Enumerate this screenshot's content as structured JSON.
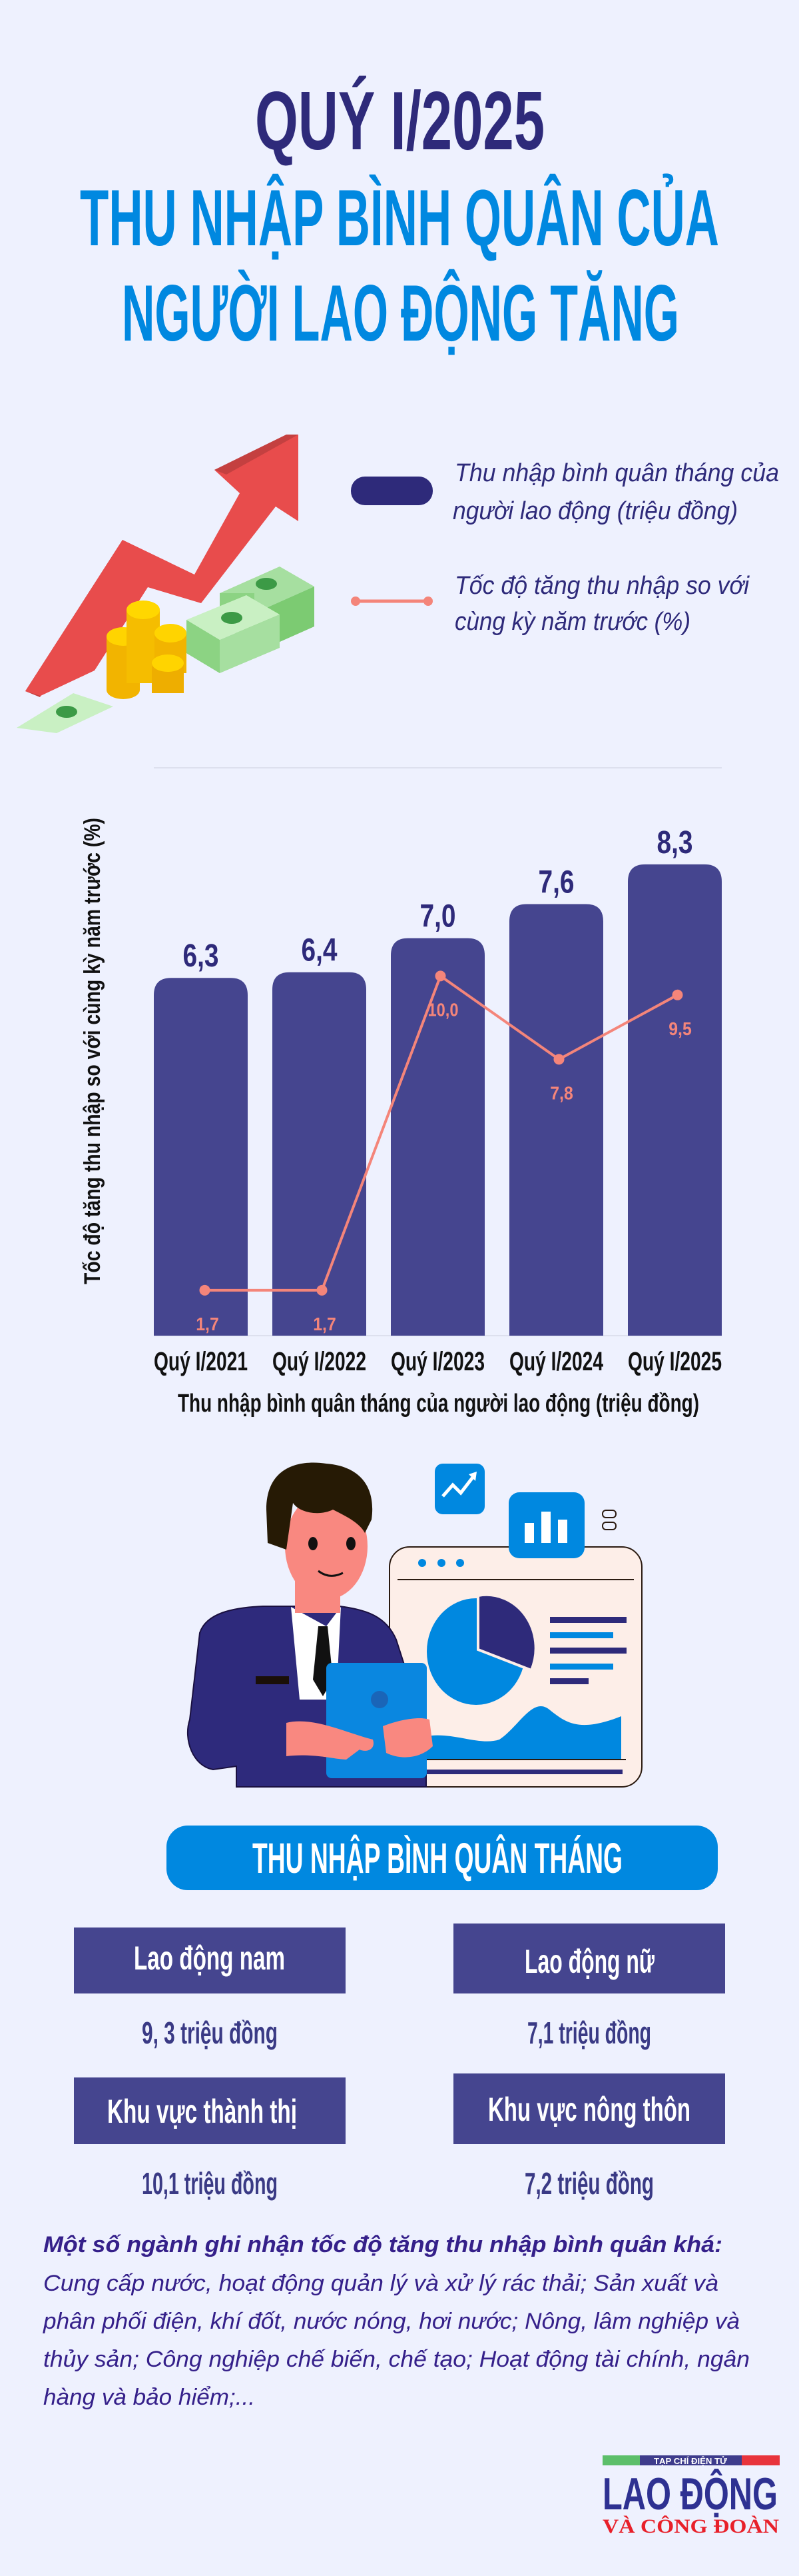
{
  "header": {
    "line1": "QUÝ I/2025",
    "line2": "THU NHẬP BÌNH QUÂN CỦA",
    "line3": "NGƯỜI LAO ĐỘNG TĂNG"
  },
  "legend": {
    "bar_line1": "Thu nhập bình quân tháng của",
    "bar_line2": "người lao động (triệu đồng)",
    "line_line1": "Tốc độ tăng thu nhập so với",
    "line_line2": "cùng kỳ năm trước (%)"
  },
  "chart_data": {
    "type": "bar+line",
    "categories": [
      "Quý I/2021",
      "Quý I/2022",
      "Quý I/2023",
      "Quý I/2024",
      "Quý I/2025"
    ],
    "series": [
      {
        "name": "Thu nhập bình quân tháng của người lao động (triệu đồng)",
        "type": "bar",
        "values": [
          6.3,
          6.4,
          7.0,
          7.6,
          8.3
        ],
        "labels": [
          "6,3",
          "6,4",
          "7,0",
          "7,6",
          "8,3"
        ]
      },
      {
        "name": "Tốc độ tăng thu nhập so với cùng kỳ năm trước (%)",
        "type": "line",
        "values": [
          1.7,
          1.7,
          10.0,
          7.8,
          9.5
        ],
        "labels": [
          "1,7",
          "1,7",
          "10,0",
          "7,8",
          "9,5"
        ]
      }
    ],
    "xlabel": "Thu nhập bình quân tháng của người lao động (triệu đồng)",
    "ylabel": "Tốc độ tăng thu nhập so với cùng kỳ năm trước (%)",
    "ylim": [
      0,
      10
    ],
    "ylim_secondary": [
      0.5,
      15.5
    ],
    "grid": false,
    "legend_position": "top",
    "colors": {
      "bar": "#45458f",
      "bar_label": "#2e2a7a",
      "line": "#f4857a"
    }
  },
  "summary": {
    "title": "THU NHẬP BÌNH QUÂN THÁNG",
    "cards": [
      {
        "label": "Lao động nam",
        "value": "9, 3 triệu đồng"
      },
      {
        "label": "Lao động nữ",
        "value": "7,1 triệu đồng"
      },
      {
        "label": "Khu vực thành thị",
        "value": "10,1 triệu đồng"
      },
      {
        "label": "Khu vực nông thôn",
        "value": "7,2 triệu đồng"
      }
    ]
  },
  "note": {
    "heading": "Một số ngành ghi nhận tốc độ tăng thu nhập bình quân khá:",
    "lines": [
      "Cung cấp nước, hoạt động quản lý và xử lý rác thải; Sản xuất và",
      "phân phối điện, khí đốt, nước nóng, hơi nước; Nông, lâm nghiệp và",
      "thủy sản; Công nghiệp chế biến, chế tạo; Hoạt động tài chính, ngân",
      "hàng và bảo hiểm;..."
    ]
  },
  "logo": {
    "tagline": "TẠP CHÍ ĐIỆN TỬ",
    "name": "LAO ĐỘNG",
    "subname": "VÀ CÔNG ĐOÀN"
  },
  "colors": {
    "background": "#eef1fe",
    "title_dark": "#2e2a7a",
    "title_blue": "#0088e0",
    "card": "#45458f"
  }
}
